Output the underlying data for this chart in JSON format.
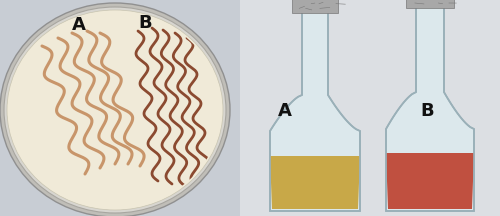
{
  "bg_left": "#c8cdd4",
  "bg_right": "#dcdfe3",
  "petri_agar": "#f0ead8",
  "petri_rim_outer": "#b8b8b8",
  "petri_rim_inner": "#d8d4c0",
  "streak_A_color": "#c8956a",
  "streak_B_color": "#8b4a30",
  "flask_glass": "#dce8ec",
  "flask_edge": "#9ab0b8",
  "flask_highlight": "#eef4f6",
  "foil_color": "#a8a8a8",
  "foil_dark": "#787878",
  "foil_light": "#d0d0d0",
  "liquid_A": "#c8a848",
  "liquid_B": "#c05040",
  "liquid_A_light": "#d8bc70",
  "liquid_B_light": "#d06858",
  "label_A": "A",
  "label_B": "B",
  "label_fontsize": 13,
  "figure_width": 5.0,
  "figure_height": 2.16,
  "dpi": 100
}
